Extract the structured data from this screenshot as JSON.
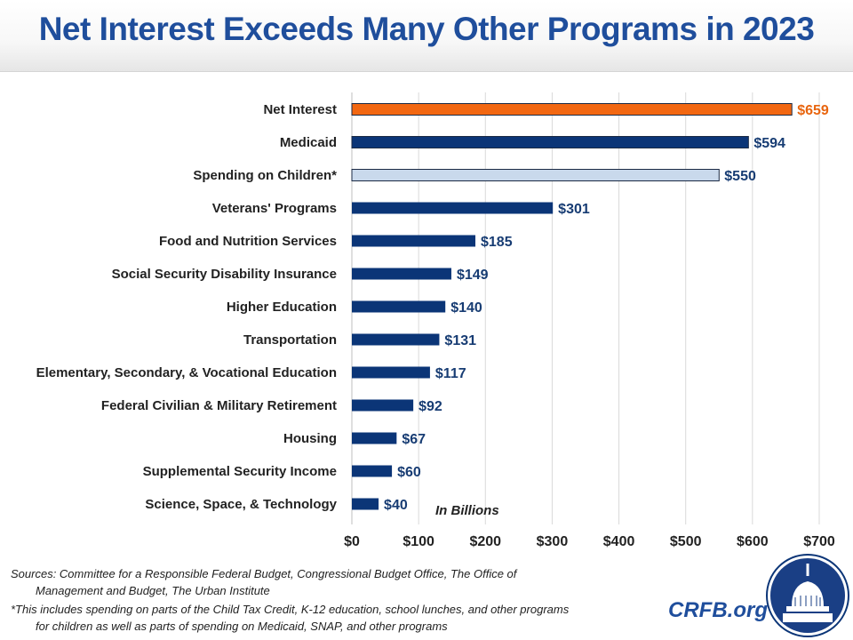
{
  "title": "Net Interest Exceeds Many Other Programs in 2023",
  "chart_data": {
    "type": "bar",
    "orientation": "horizontal",
    "categories": [
      "Net Interest",
      "Medicaid",
      "Spending on Children*",
      "Veterans' Programs",
      "Food and Nutrition Services",
      "Social Security Disability Insurance",
      "Higher Education",
      "Transportation",
      "Elementary, Secondary, & Vocational Education",
      "Federal Civilian & Military Retirement",
      "Housing",
      "Supplemental Security Income",
      "Science, Space, & Technology"
    ],
    "values": [
      659,
      594,
      550,
      301,
      185,
      149,
      140,
      131,
      117,
      92,
      67,
      60,
      40
    ],
    "data_labels": [
      "$659",
      "$594",
      "$550",
      "$301",
      "$185",
      "$149",
      "$140",
      "$131",
      "$117",
      "$92",
      "$67",
      "$60",
      "$40"
    ],
    "bar_colors": [
      "#f26711",
      "#0b3577",
      "#c9d9ec",
      "#0b3577",
      "#0b3577",
      "#0b3577",
      "#0b3577",
      "#0b3577",
      "#0b3577",
      "#0b3577",
      "#0b3577",
      "#0b3577",
      "#0b3577"
    ],
    "label_colors": [
      "#e8650f",
      "#173c73",
      "#173c73",
      "#173c73",
      "#173c73",
      "#173c73",
      "#173c73",
      "#173c73",
      "#173c73",
      "#173c73",
      "#173c73",
      "#173c73",
      "#173c73"
    ],
    "xlim": [
      0,
      700
    ],
    "xticks": [
      0,
      100,
      200,
      300,
      400,
      500,
      600,
      700
    ],
    "xtick_labels": [
      "$0",
      "$100",
      "$200",
      "$300",
      "$400",
      "$500",
      "$600",
      "$700"
    ],
    "annotation": "In Billions",
    "grid": "vertical"
  },
  "sources": "Sources: Committee for a Responsible Federal Budget, Congressional Budget Office, The Office of Management and Budget, The Urban Institute",
  "footnote": "*This includes spending on parts of the Child Tax Credit, K-12 education, school lunches, and other programs for children as well as parts of spending on Medicaid, SNAP, and other programs",
  "site": "CRFB.org",
  "colors": {
    "title": "#1f4e9c",
    "accent": "#f26711",
    "primary": "#0b3577"
  }
}
